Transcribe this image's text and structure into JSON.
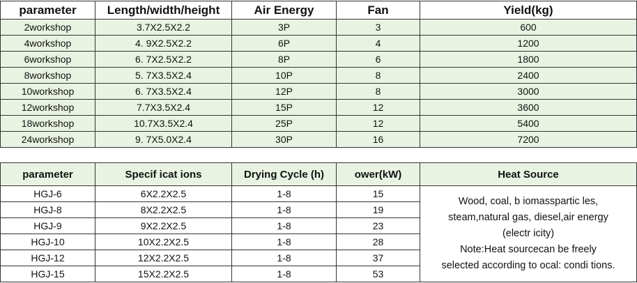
{
  "table1": {
    "headers": [
      "parameter",
      "Length/width/height",
      "Air Energy",
      "Fan",
      "Yield(kg)"
    ],
    "rows": [
      [
        "2workshop",
        "3.7X2.5X2.2",
        "3P",
        "3",
        "600"
      ],
      [
        "4workshop",
        "4. 9X2.5X2.2",
        "6P",
        "4",
        "1200"
      ],
      [
        "6workshop",
        "6. 7X2.5X2.2",
        "8P",
        "6",
        "1800"
      ],
      [
        "8workshop",
        "5. 7X3.5X2.4",
        "10P",
        "8",
        "2400"
      ],
      [
        "10workshop",
        "6. 7X3.5X2.4",
        "12P",
        "8",
        "3000"
      ],
      [
        "12workshop",
        "7.7X3.5X2.4",
        "15P",
        "12",
        "3600"
      ],
      [
        "18workshop",
        "10.7X3.5X2.4",
        "25P",
        "12",
        "5400"
      ],
      [
        "24workshop",
        "9. 7X5.0X2.4",
        "30P",
        "16",
        "7200"
      ]
    ]
  },
  "table2": {
    "headers": [
      "parameter",
      "Specif icat ions",
      "Drying Cycle (h)",
      "ower(kW)",
      "Heat Source"
    ],
    "rows": [
      [
        "HGJ-6",
        "6X2.2X2.5",
        "1-8",
        "15"
      ],
      [
        "HGJ-8",
        "8X2.2X2.5",
        "1-8",
        "19"
      ],
      [
        "HGJ-9",
        "9X2.2X2.5",
        "1-8",
        "23"
      ],
      [
        "HGJ-10",
        "10X2.2X2.5",
        "1-8",
        "28"
      ],
      [
        "HGJ-12",
        "12X2.2X2.5",
        "1-8",
        "37"
      ],
      [
        "HGJ-15",
        "15X2.2X2.5",
        "1-8",
        "53"
      ]
    ],
    "heat_source_lines": [
      "Wood, coal, b iomasspartic les,",
      "steam,natural gas, diesel,air energy",
      "(electr icity)",
      "Note:Heat sourcecan be freely",
      "selected according to ocal: condi tions."
    ]
  }
}
